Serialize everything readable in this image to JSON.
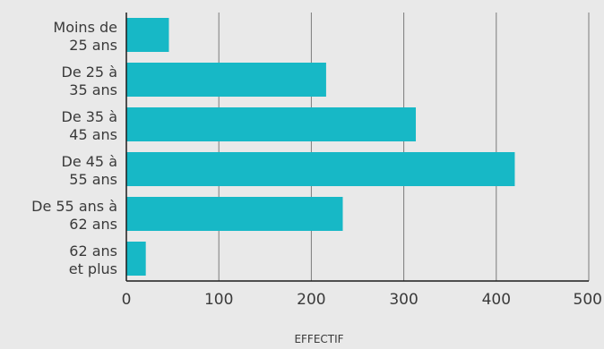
{
  "chart_data": {
    "type": "bar",
    "orientation": "horizontal",
    "categories": [
      [
        "Moins de",
        "25 ans"
      ],
      [
        "De 25 à",
        "35 ans"
      ],
      [
        "De 35 à",
        "45 ans"
      ],
      [
        "De 45 à",
        "55 ans"
      ],
      [
        "De 55 ans à",
        "62 ans"
      ],
      [
        "62 ans",
        "et plus"
      ]
    ],
    "values": [
      46,
      216,
      313,
      420,
      234,
      21
    ],
    "xlabel": "EFFECTIF",
    "xlim": [
      0,
      500
    ],
    "xticks": [
      "0",
      "100",
      "200",
      "300",
      "400",
      "500"
    ],
    "grid": "vertical",
    "colors": {
      "bar": "#17b8c6",
      "background": "#e9e9e9",
      "grid": "#7a7a7a",
      "axis": "#1c1c1c",
      "text": "#3a3a3a"
    }
  }
}
